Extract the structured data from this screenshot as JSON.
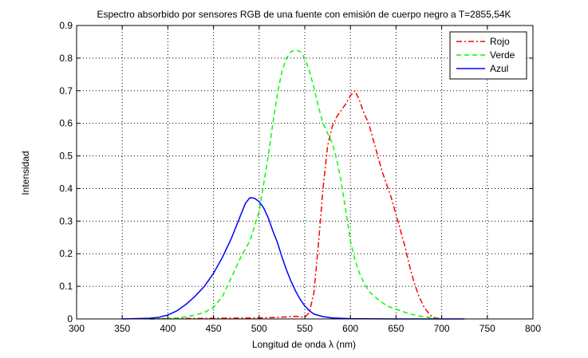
{
  "chart_data": {
    "type": "line",
    "title": "Espectro absorbido por sensores RGB de una fuente con emisión de cuerpo negro a T=2855,54K",
    "xlabel": "Longitud de onda λ (nm)",
    "ylabel": "Intensidad",
    "xlim": [
      300,
      800
    ],
    "ylim": [
      0,
      0.9
    ],
    "xticks": [
      300,
      350,
      400,
      450,
      500,
      550,
      600,
      650,
      700,
      750,
      800
    ],
    "yticks": [
      0,
      0.1,
      0.2,
      0.3,
      0.4,
      0.5,
      0.6,
      0.7,
      0.8,
      0.9
    ],
    "xtick_labels": [
      "300",
      "350",
      "400",
      "450",
      "500",
      "550",
      "600",
      "650",
      "700",
      "750",
      "800"
    ],
    "ytick_labels": [
      "0",
      "0.1",
      "0.2",
      "0.3",
      "0.4",
      "0.5",
      "0.6",
      "0.7",
      "0.8",
      "0.9"
    ],
    "grid": true,
    "legend_position": "top-right",
    "series": [
      {
        "name": "Rojo",
        "color": "#ff0000",
        "style": "dashdot",
        "x": [
          380,
          400,
          450,
          500,
          520,
          540,
          550,
          555,
          560,
          565,
          570,
          575,
          580,
          585,
          590,
          595,
          600,
          605,
          610,
          615,
          620,
          625,
          630,
          635,
          640,
          645,
          650,
          655,
          660,
          665,
          670,
          675,
          680,
          685,
          690,
          700
        ],
        "y": [
          0,
          0.001,
          0.002,
          0.003,
          0.005,
          0.008,
          0.005,
          0.02,
          0.08,
          0.23,
          0.4,
          0.53,
          0.59,
          0.62,
          0.64,
          0.66,
          0.685,
          0.7,
          0.67,
          0.63,
          0.6,
          0.55,
          0.5,
          0.45,
          0.41,
          0.37,
          0.32,
          0.27,
          0.22,
          0.16,
          0.11,
          0.07,
          0.04,
          0.02,
          0.005,
          0
        ]
      },
      {
        "name": "Verde",
        "color": "#00ff00",
        "style": "dashed",
        "x": [
          380,
          400,
          410,
          420,
          430,
          440,
          450,
          460,
          470,
          480,
          490,
          500,
          510,
          515,
          520,
          525,
          530,
          535,
          540,
          545,
          550,
          555,
          560,
          565,
          570,
          575,
          580,
          585,
          590,
          595,
          600,
          605,
          610,
          615,
          620,
          630,
          640,
          650,
          660,
          670,
          680,
          690,
          700
        ],
        "y": [
          0,
          0.001,
          0.003,
          0.007,
          0.012,
          0.02,
          0.035,
          0.07,
          0.13,
          0.19,
          0.24,
          0.33,
          0.5,
          0.6,
          0.69,
          0.76,
          0.8,
          0.82,
          0.825,
          0.82,
          0.8,
          0.76,
          0.71,
          0.65,
          0.6,
          0.57,
          0.54,
          0.49,
          0.42,
          0.33,
          0.24,
          0.18,
          0.14,
          0.11,
          0.085,
          0.06,
          0.04,
          0.03,
          0.02,
          0.012,
          0.007,
          0.003,
          0
        ]
      },
      {
        "name": "Azul",
        "color": "#0000ff",
        "style": "solid",
        "x": [
          350,
          380,
          390,
          400,
          410,
          420,
          430,
          440,
          450,
          460,
          470,
          480,
          485,
          490,
          495,
          500,
          505,
          510,
          515,
          520,
          525,
          530,
          535,
          540,
          545,
          550,
          555,
          560,
          570,
          580,
          600,
          650,
          700,
          725
        ],
        "y": [
          0,
          0.002,
          0.005,
          0.012,
          0.025,
          0.045,
          0.07,
          0.1,
          0.14,
          0.19,
          0.25,
          0.32,
          0.355,
          0.372,
          0.37,
          0.36,
          0.34,
          0.31,
          0.27,
          0.235,
          0.19,
          0.15,
          0.115,
          0.085,
          0.06,
          0.04,
          0.025,
          0.015,
          0.007,
          0.003,
          0.001,
          0,
          0,
          0
        ]
      }
    ]
  }
}
